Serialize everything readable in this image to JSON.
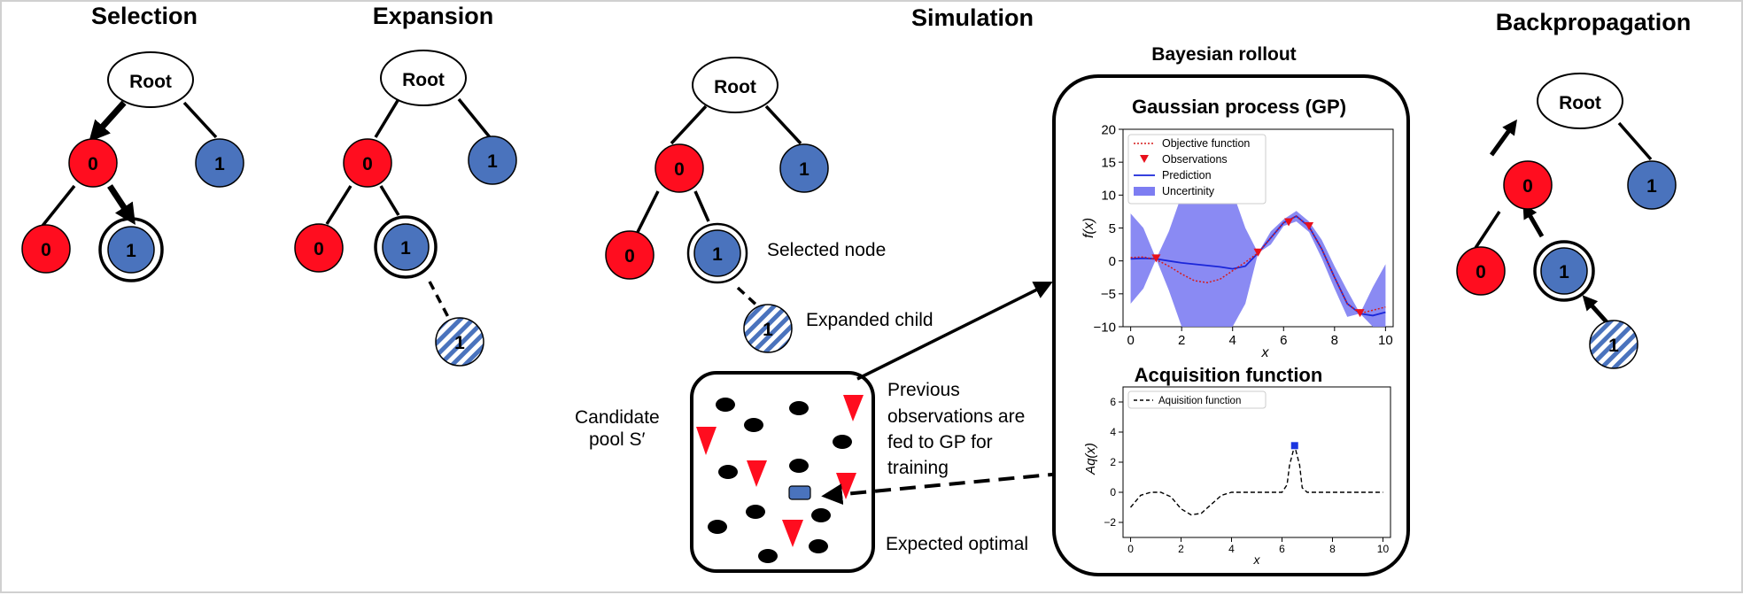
{
  "stages": {
    "selection": "Selection",
    "expansion": "Expansion",
    "simulation": "Simulation",
    "backpropagation": "Backpropagation"
  },
  "tree": {
    "root": "Root",
    "node0": "0",
    "node1": "1"
  },
  "annotations": {
    "selected_node": "Selected node",
    "expanded_child": "Expanded child",
    "candidate_pool_line1": "Candidate",
    "candidate_pool_line2": "pool S′",
    "previous_obs": [
      "Previous",
      "observations are",
      "fed to GP for",
      "training"
    ],
    "expected_optimal": "Expected optimal"
  },
  "bayesian_rollout": {
    "title": "Bayesian rollout",
    "gp_title": "Gaussian process (GP)",
    "acq_title": "Acquisition function"
  },
  "colors": {
    "red_node": "#ff0d1f",
    "blue_node": "#4a73bd",
    "prediction": "#1a26d9",
    "uncertainty": "#7d7df2",
    "objective": "#d61a1a",
    "point": "#1a35e0"
  },
  "chart_data": [
    {
      "type": "line",
      "title": "",
      "xlabel": "x",
      "ylabel": "f(x)",
      "xlim": [
        -0.3,
        10.3
      ],
      "ylim": [
        -10,
        20
      ],
      "xticks": [
        0,
        2,
        4,
        6,
        8,
        10
      ],
      "yticks": [
        -10,
        -5,
        0,
        5,
        10,
        15,
        20
      ],
      "legend": "top-left",
      "legend_entries": [
        "Objective function",
        "Observations",
        "Prediction",
        "Uncertinity"
      ],
      "x": [
        0,
        0.5,
        1,
        1.5,
        2,
        2.5,
        3,
        3.5,
        4,
        4.5,
        5,
        5.5,
        6,
        6.5,
        7,
        7.5,
        8,
        8.5,
        9,
        9.5,
        10
      ],
      "series": [
        {
          "name": "Objective function",
          "values": [
            0.5,
            0.6,
            0.2,
            -0.8,
            -2.0,
            -3.0,
            -3.3,
            -2.8,
            -1.5,
            -0.2,
            1.2,
            3.5,
            5.8,
            6.8,
            5.2,
            1.8,
            -2.5,
            -6.5,
            -8.0,
            -7.5,
            -7.0
          ]
        },
        {
          "name": "Prediction",
          "values": [
            0.3,
            0.4,
            0.3,
            0.0,
            -0.3,
            -0.5,
            -0.7,
            -0.9,
            -1.2,
            -0.8,
            1.2,
            3.5,
            5.8,
            6.8,
            5.2,
            1.8,
            -2.5,
            -6.5,
            -8.0,
            -8.3,
            -7.8
          ]
        },
        {
          "name": "Uncertinity upper",
          "values": [
            7.2,
            5.0,
            0.3,
            4.5,
            10.0,
            14.0,
            15.5,
            14.0,
            10.5,
            5.0,
            1.2,
            4.5,
            6.3,
            7.6,
            6.0,
            3.2,
            -0.8,
            -4.5,
            -8.0,
            -4.0,
            -0.5
          ]
        },
        {
          "name": "Uncertinity lower",
          "values": [
            -6.5,
            -4.2,
            0.3,
            -4.5,
            -10.0,
            -10.0,
            -10.0,
            -10.0,
            -10.0,
            -6.5,
            1.2,
            2.5,
            5.3,
            6.0,
            4.4,
            0.4,
            -4.2,
            -8.5,
            -8.0,
            -10.0,
            -10.0
          ]
        }
      ],
      "observations": {
        "x": [
          1,
          5,
          6.2,
          7,
          9
        ],
        "y": [
          0.3,
          1.2,
          5.8,
          5.2,
          -8.0
        ]
      }
    },
    {
      "type": "line",
      "title": "Acquisition function",
      "xlabel": "x",
      "ylabel": "Aq(x)",
      "xlim": [
        -0.3,
        10.3
      ],
      "ylim": [
        -3,
        7
      ],
      "xticks": [
        0,
        2,
        4,
        6,
        8,
        10
      ],
      "yticks": [
        -2,
        0,
        2,
        4,
        6
      ],
      "legend": "top-left",
      "legend_entries": [
        "Aquisition function"
      ],
      "x": [
        0,
        0.4,
        0.8,
        1.2,
        1.6,
        2.0,
        2.4,
        2.8,
        3.2,
        3.6,
        4.0,
        4.4,
        4.8,
        5.2,
        5.6,
        6.0,
        6.2,
        6.3,
        6.5,
        6.7,
        6.8,
        7.0,
        8.0,
        9.0,
        10.0
      ],
      "series": [
        {
          "name": "Aquisition function",
          "values": [
            -1.0,
            -0.2,
            0.0,
            0.0,
            -0.3,
            -1.1,
            -1.5,
            -1.4,
            -0.8,
            -0.2,
            0.0,
            0.0,
            0.0,
            0.0,
            0.0,
            0.0,
            0.5,
            1.8,
            3.1,
            1.8,
            0.3,
            0.0,
            0.0,
            0.0,
            0.0
          ]
        }
      ],
      "optimum": {
        "x": 6.5,
        "y": 3.1
      }
    }
  ]
}
